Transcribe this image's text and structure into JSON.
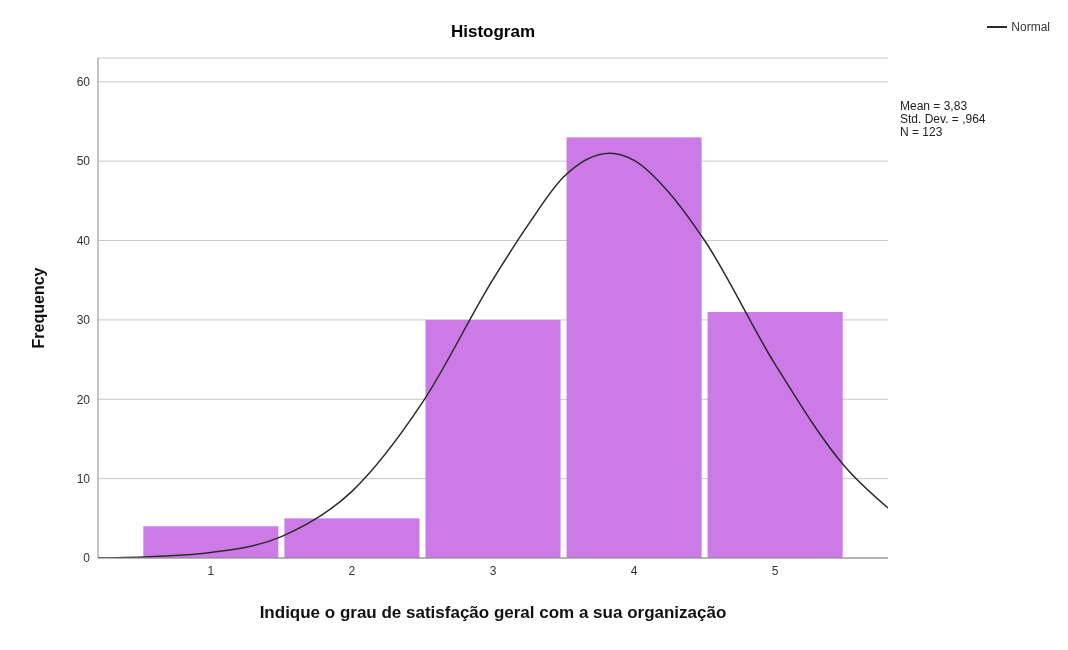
{
  "chart_data": {
    "type": "histogram",
    "title": "Histogram",
    "xlabel": "Indique o grau de satisfação geral com a sua organização",
    "ylabel": "Frequency",
    "bins": [
      0.5,
      1.5,
      2.5,
      3.5,
      4.5,
      5.5
    ],
    "values": [
      4,
      5,
      30,
      53,
      31
    ],
    "color": "#cc7ae6",
    "series": [
      {
        "type": "line",
        "name": "Normal",
        "color": "#2a2a2a",
        "x": [
          0.2,
          0.6,
          1,
          1.5,
          2,
          2.5,
          3,
          3.25,
          3.5,
          3.83,
          4,
          4.25,
          4.5,
          5,
          5.5,
          5.8
        ],
        "values": [
          0,
          0.2,
          0.7,
          2.7,
          8.4,
          19.6,
          35.1,
          42,
          48,
          51,
          50.1,
          46,
          40,
          24.4,
          11.4,
          6.3
        ]
      }
    ],
    "xlim": [
      0.2,
      5.8
    ],
    "xticks": [
      1,
      2,
      3,
      4,
      5
    ],
    "ylim": [
      0,
      63
    ],
    "yticks": [
      0,
      10,
      20,
      30,
      40,
      50,
      60
    ],
    "grid": "y",
    "legend": "top right",
    "annotations": [
      "Mean = 3,83",
      "Std. Dev. = ,964",
      "N = 123"
    ]
  }
}
